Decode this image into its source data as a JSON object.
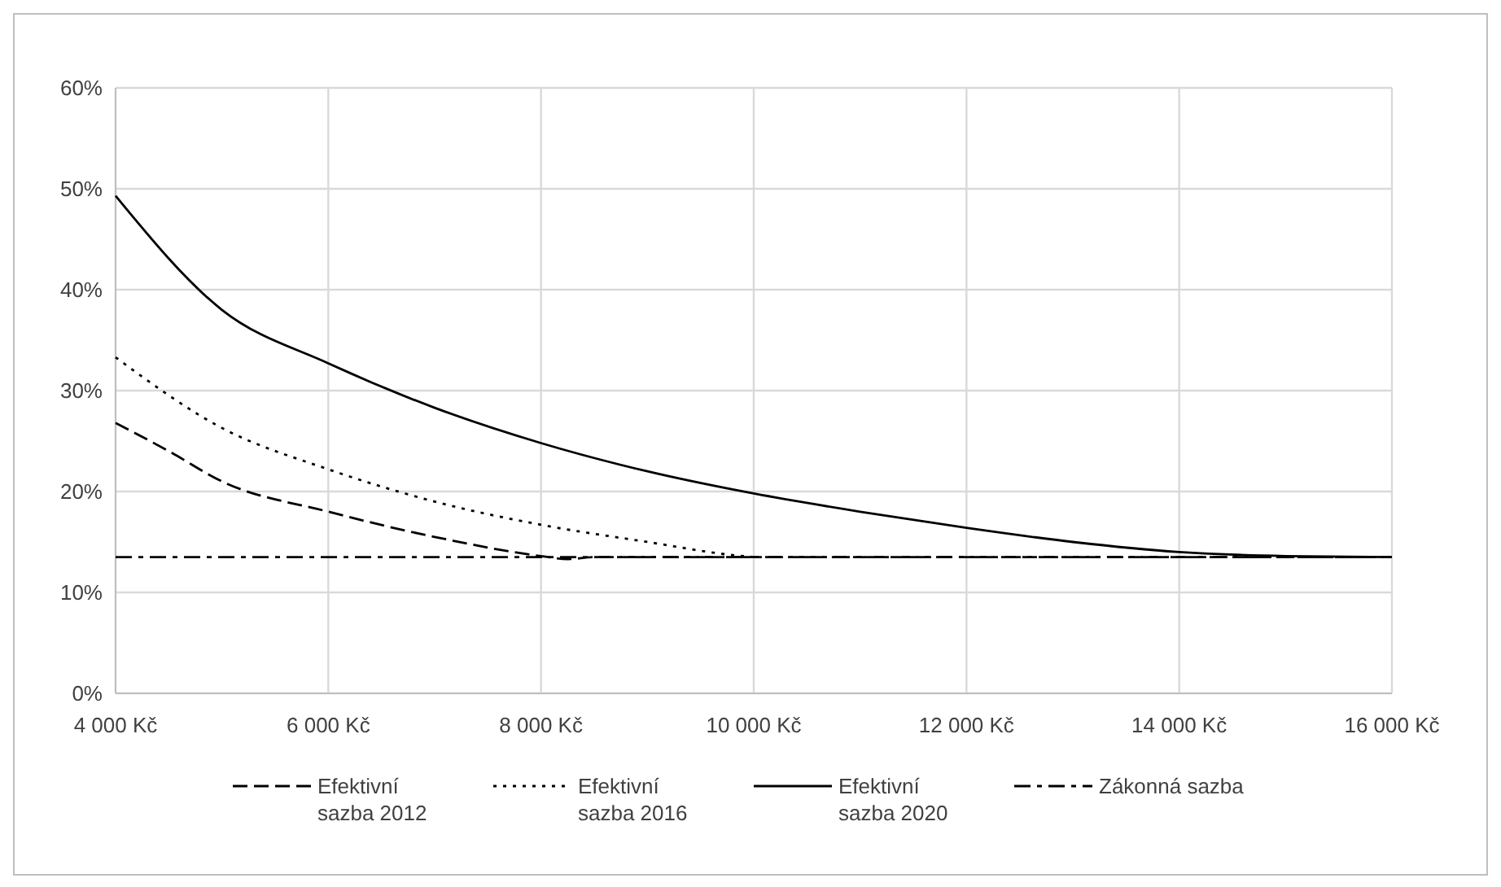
{
  "chart_data": {
    "type": "line",
    "x": [
      4000,
      5000,
      6000,
      7000,
      8000,
      9000,
      10000,
      11000,
      12000,
      13000,
      14000,
      15000,
      16000
    ],
    "xlim": [
      4000,
      16000
    ],
    "xticks": [
      {
        "value": 4000,
        "label": "4 000 Kč"
      },
      {
        "value": 6000,
        "label": "6 000 Kč"
      },
      {
        "value": 8000,
        "label": "8 000 Kč"
      },
      {
        "value": 10000,
        "label": "10 000 Kč"
      },
      {
        "value": 12000,
        "label": "12 000 Kč"
      },
      {
        "value": 14000,
        "label": "14 000 Kč"
      },
      {
        "value": 16000,
        "label": "16 000 Kč"
      }
    ],
    "ylim": [
      0,
      60
    ],
    "yticks": [
      {
        "value": 0,
        "label": "0%"
      },
      {
        "value": 10,
        "label": "10%"
      },
      {
        "value": 20,
        "label": "20%"
      },
      {
        "value": 30,
        "label": "30%"
      },
      {
        "value": 40,
        "label": "40%"
      },
      {
        "value": 50,
        "label": "50%"
      },
      {
        "value": 60,
        "label": "60%"
      }
    ],
    "grid": true,
    "legend": "bottom",
    "series": [
      {
        "name": "Efektivní sazba 2012",
        "color": "#000000",
        "line_style": "dashed",
        "x": [
          4000,
          4500,
          5000,
          6000,
          7000,
          8000,
          8250,
          8500,
          10000,
          12000,
          14000,
          16000
        ],
        "values": [
          26.8,
          24,
          21,
          18,
          15.5,
          13.6,
          13.3,
          13.5,
          13.5,
          13.5,
          13.5,
          13.5
        ]
      },
      {
        "name": "Efektivní sazba 2016",
        "color": "#000000",
        "line_style": "dotted",
        "x": [
          4000,
          5000,
          6000,
          7000,
          8000,
          9000,
          9800,
          10000
        ],
        "values": [
          33.3,
          26.3,
          22.2,
          19,
          16.7,
          15,
          13.7,
          13.5
        ]
      },
      {
        "name": "Efektivní sazba 2020",
        "color": "#000000",
        "line_style": "solid",
        "values": [
          49.3,
          38,
          32.7,
          28.3,
          24.8,
          22,
          19.8,
          18,
          16.4,
          15,
          14,
          13.6,
          13.5
        ]
      },
      {
        "name": "Zákonná sazba",
        "color": "#000000",
        "line_style": "dashdot",
        "x": [
          4000,
          16000
        ],
        "values": [
          13.5,
          13.5
        ]
      }
    ]
  }
}
